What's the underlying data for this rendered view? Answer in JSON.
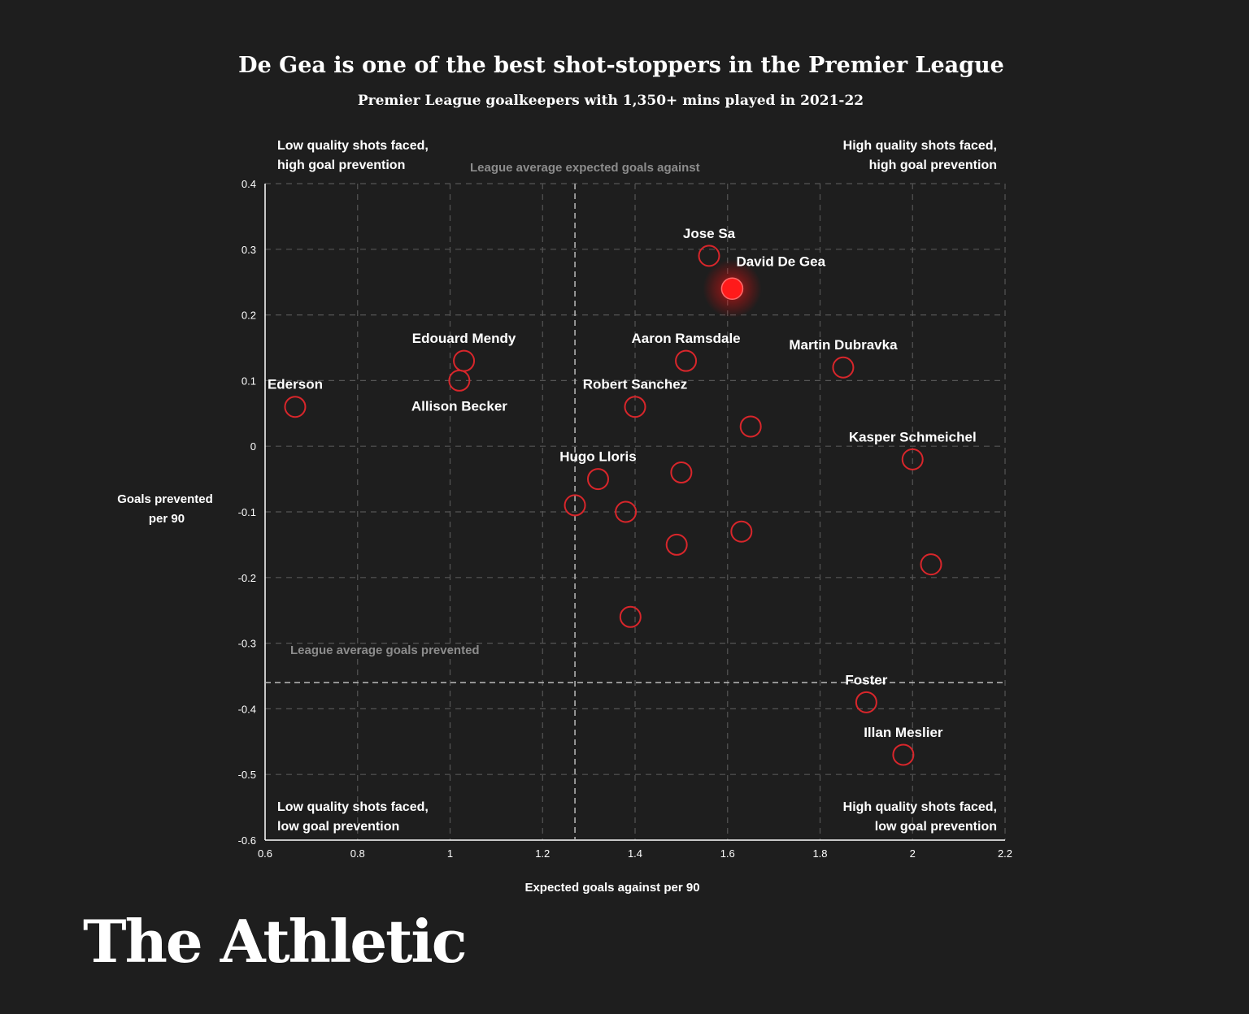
{
  "colors": {
    "background": "#1e1e1e",
    "grid": "#555555",
    "refline": "#bbbbbb",
    "marker": "#d8262b",
    "highlight": "#ff1a1a"
  },
  "chart_data": {
    "type": "scatter",
    "title": "De Gea is one of the best shot-stoppers in the Premier League",
    "subtitle": "Premier League goalkeepers with 1,350+ mins played in 2021-22",
    "xlabel": "Expected goals against per 90",
    "ylabel_lines": [
      "Goals prevented",
      "per 90"
    ],
    "xlim": [
      0.6,
      2.2
    ],
    "ylim": [
      -0.6,
      0.4
    ],
    "xticks": [
      0.6,
      0.8,
      1,
      1.2,
      1.4,
      1.6,
      1.8,
      2,
      2.2
    ],
    "xtick_labels": [
      "0.6",
      "0.8",
      "1",
      "1.2",
      "1.4",
      "1.6",
      "1.8",
      "2",
      "2.2"
    ],
    "yticks": [
      0.4,
      0.3,
      0.2,
      0.1,
      0,
      -0.1,
      -0.2,
      -0.3,
      -0.4,
      -0.5,
      -0.6
    ],
    "ytick_labels": [
      "0.4",
      "0.3",
      "0.2",
      "0.1",
      "0",
      "-0.1",
      "-0.2",
      "-0.3",
      "-0.4",
      "-0.5",
      "-0.6"
    ],
    "grid": true,
    "reference_lines": {
      "x": 1.27,
      "x_label": "League average expected goals against",
      "y": -0.36,
      "y_label": "League average goals prevented"
    },
    "quadrant_labels": {
      "top_left": [
        "Low quality shots faced,",
        "high goal prevention"
      ],
      "top_right": [
        "High quality shots faced,",
        "high goal prevention"
      ],
      "bottom_left": [
        "Low quality shots faced,",
        "low goal prevention"
      ],
      "bottom_right": [
        "High quality shots faced,",
        "low goal prevention"
      ]
    },
    "points": [
      {
        "x": 1.61,
        "y": 0.24,
        "label": "David De Gea",
        "highlight": true,
        "label_pos": "right-above"
      },
      {
        "x": 1.56,
        "y": 0.29,
        "label": "Jose Sa",
        "label_pos": "above"
      },
      {
        "x": 1.03,
        "y": 0.13,
        "label": "Edouard Mendy",
        "label_pos": "above"
      },
      {
        "x": 1.02,
        "y": 0.1,
        "label": "Allison Becker",
        "label_pos": "below"
      },
      {
        "x": 0.665,
        "y": 0.06,
        "label": "Ederson",
        "label_pos": "above"
      },
      {
        "x": 1.51,
        "y": 0.13,
        "label": "Aaron Ramsdale",
        "label_pos": "above"
      },
      {
        "x": 1.85,
        "y": 0.12,
        "label": "Martin Dubravka",
        "label_pos": "above"
      },
      {
        "x": 1.4,
        "y": 0.06,
        "label": "Robert Sanchez",
        "label_pos": "above"
      },
      {
        "x": 1.65,
        "y": 0.03,
        "label": ""
      },
      {
        "x": 2.0,
        "y": -0.02,
        "label": "Kasper Schmeichel",
        "label_pos": "above"
      },
      {
        "x": 1.32,
        "y": -0.05,
        "label": "Hugo Lloris",
        "label_pos": "above"
      },
      {
        "x": 1.5,
        "y": -0.04,
        "label": ""
      },
      {
        "x": 1.27,
        "y": -0.09,
        "label": ""
      },
      {
        "x": 1.38,
        "y": -0.1,
        "label": ""
      },
      {
        "x": 1.63,
        "y": -0.13,
        "label": ""
      },
      {
        "x": 1.49,
        "y": -0.15,
        "label": ""
      },
      {
        "x": 2.04,
        "y": -0.18,
        "label": ""
      },
      {
        "x": 1.39,
        "y": -0.26,
        "label": ""
      },
      {
        "x": 1.9,
        "y": -0.39,
        "label": "Foster",
        "label_pos": "above"
      },
      {
        "x": 1.98,
        "y": -0.47,
        "label": "Illan Meslier",
        "label_pos": "above"
      }
    ]
  },
  "brand": "The Athletic"
}
